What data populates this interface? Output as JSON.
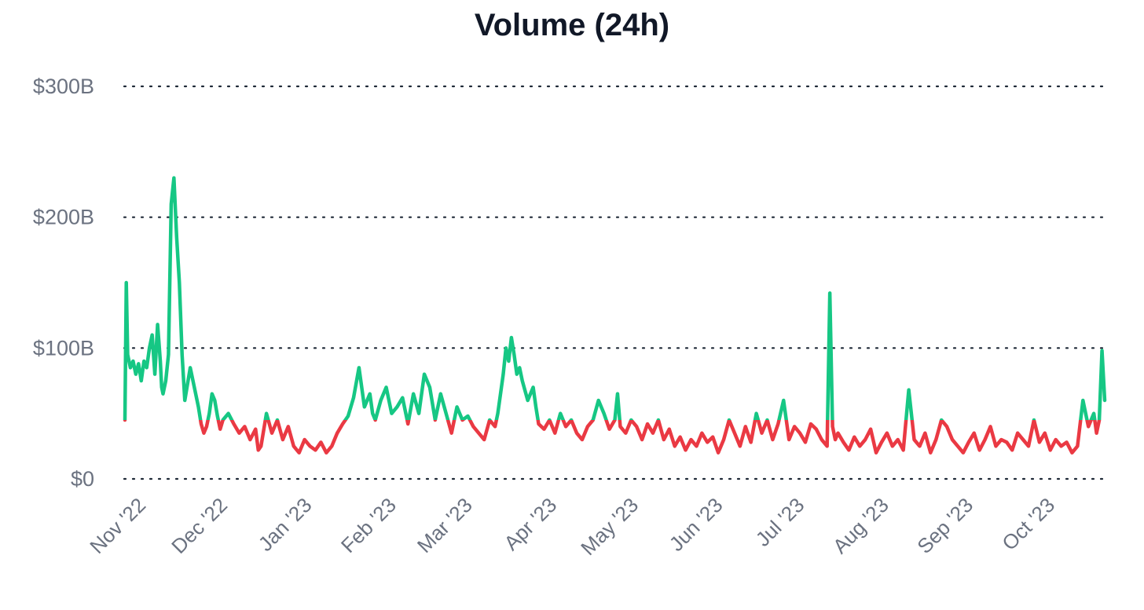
{
  "chart_data": {
    "type": "line",
    "title": "Volume (24h)",
    "xlabel": "",
    "ylabel": "",
    "ylim": [
      0,
      300
    ],
    "y_unit": "billions USD",
    "baseline": 45,
    "colors": {
      "above_baseline": "#16c784",
      "below_baseline": "#ea3943"
    },
    "y_ticks": [
      {
        "value": 0,
        "label": "$0"
      },
      {
        "value": 100,
        "label": "$100B"
      },
      {
        "value": 200,
        "label": "$200B"
      },
      {
        "value": 300,
        "label": "$300B"
      }
    ],
    "x_ticks": [
      {
        "day": 0,
        "label": "Nov '22"
      },
      {
        "day": 30,
        "label": "Dec '22"
      },
      {
        "day": 61,
        "label": "Jan '23"
      },
      {
        "day": 92,
        "label": "Feb '23"
      },
      {
        "day": 120,
        "label": "Mar '23"
      },
      {
        "day": 151,
        "label": "Apr '23"
      },
      {
        "day": 181,
        "label": "May '23"
      },
      {
        "day": 212,
        "label": "Jun '23"
      },
      {
        "day": 242,
        "label": "Jul '23"
      },
      {
        "day": 273,
        "label": "Aug '23"
      },
      {
        "day": 304,
        "label": "Sep '23"
      },
      {
        "day": 334,
        "label": "Oct '23"
      }
    ],
    "x_max_day": 360,
    "series": [
      {
        "name": "Volume (24h)",
        "x": [
          0,
          0.5,
          1,
          2,
          3,
          4,
          5,
          6,
          7,
          8,
          9,
          10,
          11,
          12,
          13,
          13.5,
          14,
          15,
          16,
          17,
          18,
          19,
          20,
          21,
          22,
          24,
          26,
          27,
          28,
          29,
          30,
          31,
          32,
          33,
          34,
          35,
          36,
          38,
          40,
          42,
          44,
          46,
          48,
          49,
          50,
          52,
          54,
          56,
          58,
          60,
          62,
          64,
          66,
          68,
          70,
          72,
          74,
          76,
          78,
          80,
          81,
          82,
          83,
          84,
          86,
          88,
          90,
          91,
          92,
          94,
          96,
          98,
          100,
          102,
          104,
          106,
          108,
          110,
          112,
          114,
          116,
          118,
          120,
          122,
          124,
          126,
          128,
          130,
          132,
          134,
          136,
          137,
          138,
          139,
          140,
          141,
          142,
          143,
          144,
          145,
          146,
          148,
          150,
          151,
          152,
          154,
          156,
          158,
          160,
          162,
          164,
          166,
          168,
          170,
          172,
          174,
          176,
          178,
          180,
          181,
          182,
          184,
          186,
          188,
          190,
          192,
          194,
          196,
          198,
          200,
          202,
          204,
          206,
          208,
          210,
          212,
          214,
          216,
          218,
          220,
          222,
          224,
          226,
          228,
          230,
          232,
          234,
          236,
          238,
          240,
          242,
          243,
          244,
          246,
          248,
          250,
          252,
          254,
          256,
          258,
          259,
          260,
          261,
          262,
          264,
          266,
          268,
          270,
          272,
          274,
          276,
          278,
          280,
          282,
          284,
          286,
          288,
          290,
          292,
          294,
          296,
          298,
          300,
          302,
          304,
          306,
          308,
          310,
          312,
          314,
          316,
          318,
          320,
          322,
          324,
          326,
          328,
          330,
          332,
          334,
          336,
          338,
          340,
          342,
          344,
          346,
          348,
          350,
          352,
          354,
          356,
          357,
          358,
          359,
          360
        ],
        "values": [
          45,
          150,
          95,
          85,
          90,
          80,
          88,
          75,
          90,
          85,
          100,
          110,
          80,
          118,
          90,
          70,
          65,
          75,
          95,
          210,
          230,
          185,
          150,
          95,
          60,
          85,
          65,
          55,
          42,
          35,
          40,
          50,
          65,
          60,
          48,
          38,
          45,
          50,
          42,
          35,
          40,
          30,
          38,
          22,
          25,
          50,
          35,
          45,
          30,
          40,
          25,
          20,
          30,
          25,
          22,
          28,
          20,
          25,
          35,
          42,
          45,
          48,
          55,
          62,
          85,
          55,
          65,
          50,
          45,
          60,
          70,
          50,
          55,
          62,
          42,
          65,
          50,
          80,
          70,
          45,
          65,
          50,
          35,
          55,
          45,
          48,
          40,
          35,
          30,
          45,
          40,
          50,
          65,
          80,
          100,
          90,
          108,
          95,
          80,
          85,
          75,
          60,
          70,
          55,
          42,
          38,
          45,
          35,
          50,
          40,
          45,
          35,
          30,
          40,
          45,
          60,
          50,
          38,
          45,
          65,
          40,
          35,
          45,
          40,
          30,
          42,
          35,
          45,
          30,
          38,
          25,
          32,
          22,
          30,
          25,
          35,
          28,
          32,
          20,
          30,
          45,
          35,
          25,
          40,
          28,
          50,
          35,
          45,
          30,
          42,
          60,
          45,
          30,
          40,
          35,
          28,
          42,
          38,
          30,
          25,
          142,
          40,
          30,
          35,
          28,
          22,
          32,
          25,
          30,
          38,
          20,
          28,
          35,
          25,
          30,
          22,
          68,
          30,
          25,
          35,
          20,
          30,
          45,
          40,
          30,
          25,
          20,
          28,
          35,
          22,
          30,
          40,
          25,
          30,
          28,
          22,
          35,
          30,
          25,
          45,
          28,
          35,
          22,
          30,
          25,
          28,
          20,
          25,
          60,
          40,
          50,
          35,
          45,
          98,
          60
        ]
      }
    ]
  }
}
